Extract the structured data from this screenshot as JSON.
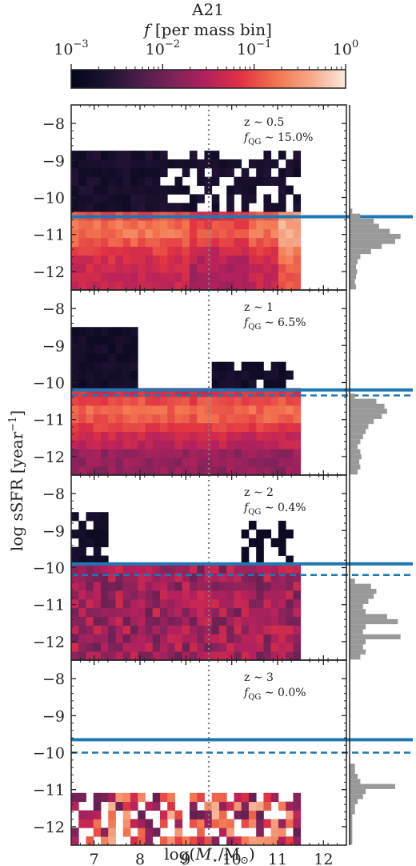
{
  "colorbar": {
    "title": "A21",
    "label_var": "f",
    "label_rest": " [per mass bin]",
    "ticks": [
      {
        "base": "10",
        "exp": "−3",
        "value": 0.001
      },
      {
        "base": "10",
        "exp": "−2",
        "value": 0.01
      },
      {
        "base": "10",
        "exp": "−1",
        "value": 0.1
      },
      {
        "base": "10",
        "exp": "0",
        "value": 1
      }
    ],
    "scale": "log",
    "colormap": "rocket",
    "range": [
      0.001,
      1
    ]
  },
  "xlabel": {
    "pre": "log(",
    "var": "M",
    "sub": "⋆",
    "mid": "/M",
    "sub2": "⊙",
    "post": ")"
  },
  "ylabel": {
    "pre": "log sSFR [year",
    "exp": "−1",
    "post": "]"
  },
  "chart_data": {
    "type": "heatmap",
    "xlim": [
      6.5,
      12.5
    ],
    "ylim": [
      -12.5,
      -7.5
    ],
    "xticks": [
      "7",
      "8",
      "9",
      "10",
      "11",
      "12"
    ],
    "yticks": [
      "−8",
      "−9",
      "−10",
      "−11",
      "−12"
    ],
    "vertical_reference_line": 9.5,
    "panels": [
      {
        "z_label": "z ∼ 0.5",
        "fqg_label": "f",
        "fqg_sub": "QG",
        "fqg_value": " ∼ 15.0%",
        "solid_line": -10.52,
        "dashed_line": null,
        "hist": [
          0.05,
          0.2,
          0.45,
          0.55,
          0.75,
          0.95,
          0.85,
          0.6,
          0.4,
          0.2,
          0.15,
          0.12,
          0.14,
          0.12,
          0.1,
          0.12
        ]
      },
      {
        "z_label": "z ∼ 1",
        "fqg_label": "f",
        "fqg_sub": "QG",
        "fqg_value": " ∼ 6.5%",
        "solid_line": -10.2,
        "dashed_line": -10.35,
        "hist": [
          0.1,
          0.5,
          0.65,
          0.7,
          0.6,
          0.45,
          0.35,
          0.3,
          0.25,
          0.2,
          0.15,
          0.2,
          0.22,
          0.18,
          0.2,
          0.15
        ]
      },
      {
        "z_label": "z ∼ 2",
        "fqg_label": "f",
        "fqg_sub": "QG",
        "fqg_value": " ∼ 0.4%",
        "solid_line": -9.9,
        "dashed_line": -10.2,
        "hist": [
          0.1,
          0.4,
          0.5,
          0.45,
          0.35,
          0.25,
          0.3,
          0.7,
          0.9,
          0.3,
          0.25,
          0.95,
          0.3,
          0.25,
          0.3,
          0.2
        ]
      },
      {
        "z_label": "z ∼ 3",
        "fqg_label": "f",
        "fqg_sub": "QG",
        "fqg_value": " ∼ 0.0%",
        "solid_line": -9.65,
        "dashed_line": -10.0,
        "hist": [
          0.1,
          0.1,
          0.15,
          0.2,
          0.85,
          0.3,
          0.25,
          0.15,
          0.1,
          0.1,
          0.05,
          0.05,
          0.05,
          0.05,
          0.05,
          0.05
        ]
      }
    ]
  },
  "colors": {
    "axis": "#222222",
    "line": "#1f77b4",
    "hist": "#999999",
    "vline": "#808080"
  }
}
